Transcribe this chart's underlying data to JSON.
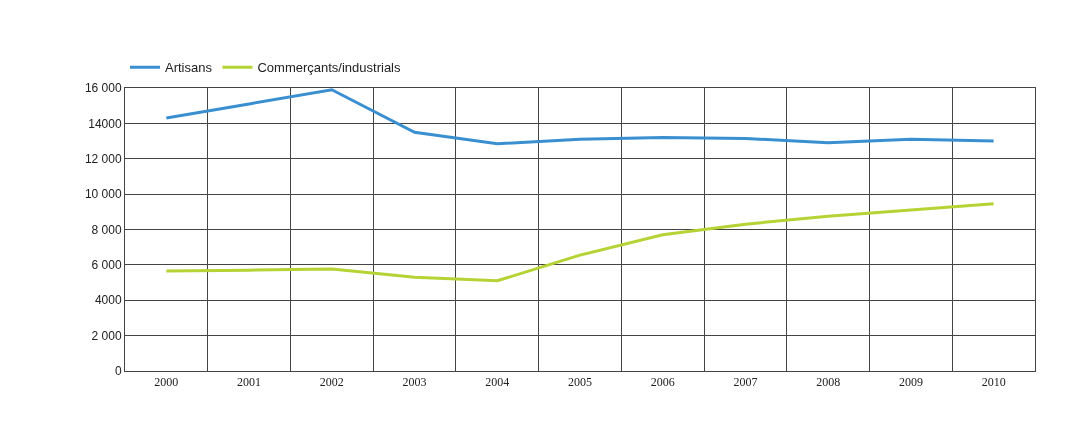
{
  "chart_data": {
    "type": "line",
    "categories": [
      "2000",
      "2001",
      "2002",
      "2003",
      "2004",
      "2005",
      "2006",
      "2007",
      "2008",
      "2009",
      "2010"
    ],
    "series": [
      {
        "name": "Artisans",
        "color": "#3a8fd0",
        "values": [
          14300,
          15100,
          15900,
          13500,
          12850,
          13100,
          13200,
          13150,
          12900,
          13100,
          13000
        ]
      },
      {
        "name": "Commerçants/industrials",
        "color": "#b5d334",
        "values": [
          5650,
          5700,
          5770,
          5300,
          5100,
          6550,
          7700,
          8300,
          8750,
          9100,
          9450
        ]
      }
    ],
    "ylim": [
      0,
      16000
    ],
    "yticks": [
      0,
      {
        "value": 2000,
        "label": "2 000"
      },
      {
        "value": 4000,
        "label": "4000"
      },
      {
        "value": 6000,
        "label": "6 000"
      },
      {
        "value": 8000,
        "label": "8 000"
      },
      {
        "value": 10000,
        "label": "10 000"
      },
      {
        "value": 12000,
        "label": "12 000"
      },
      {
        "value": 14000,
        "label": "14000"
      },
      {
        "value": 16000,
        "label": "16 000"
      }
    ],
    "grid": true,
    "legend": "top left",
    "marker": "none",
    "line_style": "solid"
  }
}
